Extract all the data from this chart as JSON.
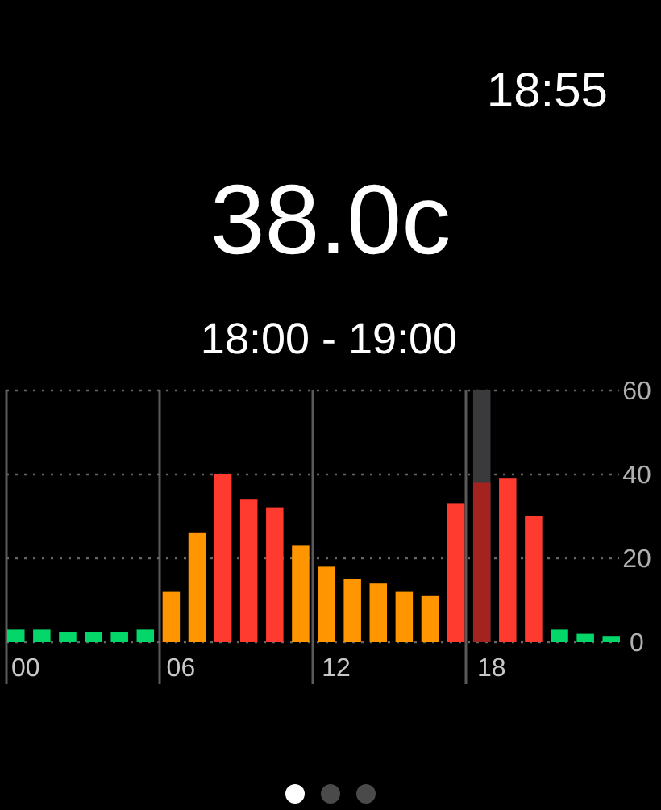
{
  "chart_data": {
    "type": "bar",
    "title": "38.0c",
    "subtitle": "18:00 - 19:00",
    "annotations": [
      "18:55"
    ],
    "categories": [
      "00",
      null,
      null,
      null,
      null,
      null,
      "06",
      null,
      null,
      null,
      null,
      null,
      "12",
      null,
      null,
      null,
      null,
      null,
      "18",
      null,
      null,
      null,
      null,
      null
    ],
    "values": [
      3,
      3,
      2.5,
      2.5,
      2.5,
      3,
      12,
      26,
      40,
      34,
      32,
      23,
      18,
      15,
      14,
      12,
      11,
      33,
      38,
      39,
      30,
      3,
      2,
      1.5
    ],
    "colors": [
      "#05d66a",
      "#05d66a",
      "#05d66a",
      "#05d66a",
      "#05d66a",
      "#05d66a",
      "#ff9500",
      "#ff9500",
      "#ff3b30",
      "#ff3b30",
      "#ff3b30",
      "#ff9500",
      "#ff9500",
      "#ff9500",
      "#ff9500",
      "#ff9500",
      "#ff9500",
      "#ff3b30",
      "#a4231f",
      "#ff3b30",
      "#ff3b30",
      "#05d66a",
      "#05d66a",
      "#05d66a"
    ],
    "ylim": [
      0,
      60
    ],
    "yticks": [
      0,
      20,
      40,
      60
    ],
    "grid": true,
    "bands": [
      {
        "axis": "x",
        "from": "18",
        "to": "18",
        "color": "#3a3a3c"
      }
    ]
  }
}
